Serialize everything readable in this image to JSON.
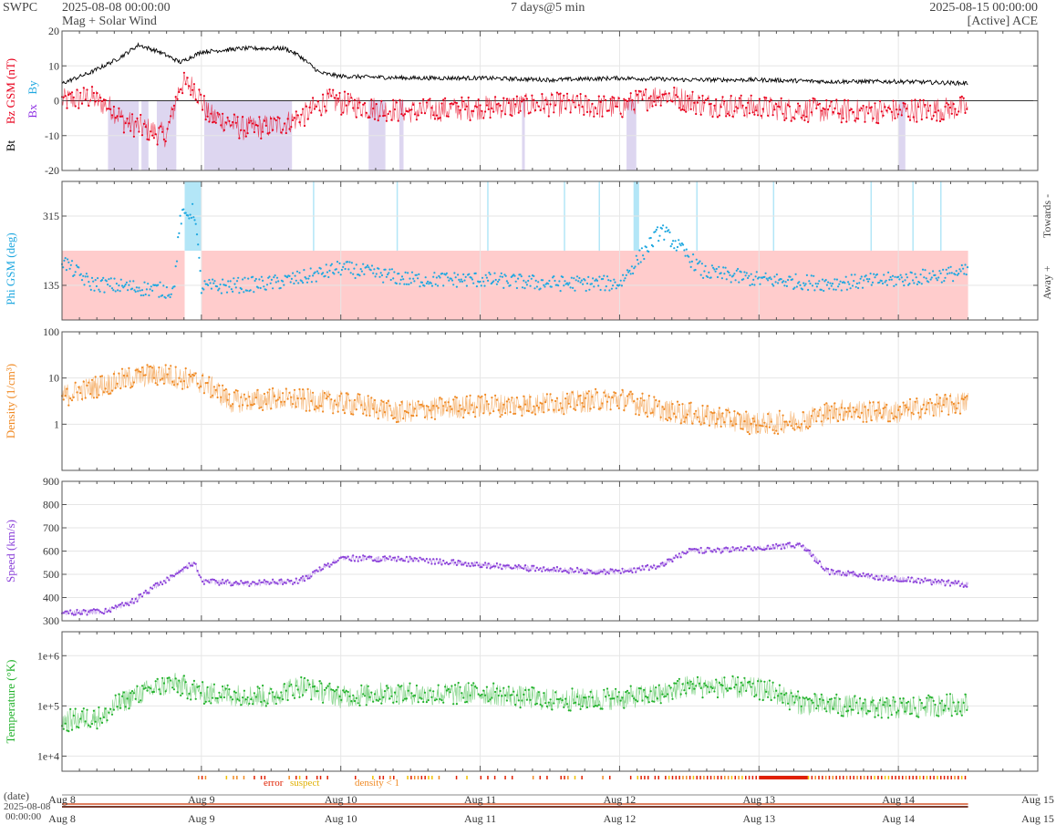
{
  "header": {
    "agency": "SWPC",
    "start": "2025-08-08 00:00:00",
    "subtitle": "Mag + Solar Wind",
    "resolution": "7 days@5 min",
    "end": "2025-08-15 00:00:00",
    "source": "[Active] ACE"
  },
  "colors": {
    "bt": "#000000",
    "bz": "#e8001c",
    "bx": "#8b2be2",
    "by": "#1fa8e0",
    "phi": "#1fa8e0",
    "density": "#f08a24",
    "speed": "#8a3fd9",
    "temperature": "#22b22b",
    "phi_away_band": "#ffcccc",
    "phi_toward_band": "#b3e6f7",
    "bz_south_shade": "#ddd6f0",
    "error": "#e02000",
    "suspect": "#f0c000",
    "density_flag": "#f08a24"
  },
  "legend_flags": {
    "error": "error",
    "suspect": "suspect",
    "density": "density < 1"
  },
  "date_axis": {
    "label": "(date)",
    "start_date": "2025-08-08",
    "start_time": "00:00:00"
  },
  "chart_data": [
    {
      "type": "line",
      "panel": "mag",
      "ylabel_parts": [
        "Bt",
        "Bz GSM (nT)",
        "Bx",
        "By"
      ],
      "ylim": [
        -20,
        20
      ],
      "yticks": [
        "20",
        "10",
        "0",
        "-10",
        "-20"
      ],
      "x_ticks": [
        "Aug 8",
        "Aug 9",
        "Aug 10",
        "Aug 11",
        "Aug 12",
        "Aug 13",
        "Aug 14",
        "Aug 15"
      ],
      "x_unit": "days since 2025-08-08 00:00",
      "series": [
        {
          "name": "Bt",
          "x": [
            0,
            0.2,
            0.4,
            0.55,
            0.7,
            0.85,
            1.0,
            1.3,
            1.6,
            1.7,
            1.85,
            2.0,
            2.5,
            3.0,
            3.5,
            4.0,
            4.5,
            5.0,
            5.5,
            6.0,
            6.5
          ],
          "y": [
            5,
            8,
            12,
            16,
            14,
            11,
            14,
            15,
            15,
            13,
            8,
            7,
            6.5,
            6.5,
            6,
            6.5,
            6,
            6,
            5.5,
            5.5,
            5
          ]
        },
        {
          "name": "Bz",
          "x": [
            0,
            0.2,
            0.35,
            0.45,
            0.6,
            0.75,
            0.85,
            0.95,
            1.05,
            1.3,
            1.55,
            1.7,
            1.9,
            2.2,
            2.5,
            3.0,
            3.5,
            4.0,
            4.3,
            4.6,
            5.0,
            5.5,
            6.0,
            6.5
          ],
          "y": [
            0,
            1,
            -2,
            -6,
            -8,
            -10,
            5,
            4,
            -4,
            -8,
            -7,
            -5,
            0,
            -2,
            -3,
            -2,
            -1,
            -2,
            2,
            -1,
            -2,
            -3,
            -3,
            -2
          ]
        }
      ]
    },
    {
      "type": "scatter",
      "panel": "phi",
      "ylabel": "Phi GSM (deg)",
      "ylim": [
        45,
        405
      ],
      "yticks": [
        "315",
        "135"
      ],
      "right_labels": [
        "Towards -",
        "Away +"
      ],
      "series": [
        {
          "name": "Phi",
          "x": [
            0,
            0.2,
            0.5,
            0.8,
            0.85,
            0.95,
            1.0,
            1.5,
            1.8,
            2.0,
            2.5,
            3.0,
            3.5,
            4.0,
            4.3,
            4.6,
            5.0,
            5.5,
            6.0,
            6.5
          ],
          "y": [
            200,
            140,
            130,
            120,
            310,
            330,
            130,
            140,
            160,
            180,
            150,
            150,
            140,
            140,
            280,
            170,
            150,
            140,
            150,
            170
          ]
        }
      ]
    },
    {
      "type": "line",
      "panel": "density",
      "ylabel": "Density (1/cm³)",
      "yscale": "log",
      "ylim": [
        0.1,
        100
      ],
      "yticks": [
        "100",
        "10",
        "1"
      ],
      "series": [
        {
          "name": "Density",
          "x": [
            0,
            0.3,
            0.5,
            0.7,
            1.0,
            1.2,
            1.5,
            1.8,
            2.0,
            2.4,
            2.7,
            3.0,
            3.5,
            4.0,
            4.3,
            4.6,
            5.0,
            5.3,
            5.6,
            6.0,
            6.5
          ],
          "y": [
            4,
            7,
            10,
            12,
            8,
            3,
            3.5,
            3.2,
            3,
            1.8,
            2.2,
            2.5,
            2.8,
            3.5,
            2,
            1.5,
            1,
            1.2,
            2,
            1.8,
            3
          ]
        }
      ]
    },
    {
      "type": "line",
      "panel": "speed",
      "ylabel": "Speed (km/s)",
      "ylim": [
        300,
        900
      ],
      "yticks": [
        "900",
        "800",
        "700",
        "600",
        "500",
        "400",
        "300"
      ],
      "series": [
        {
          "name": "Speed",
          "x": [
            0,
            0.3,
            0.5,
            0.7,
            0.95,
            1.0,
            1.3,
            1.7,
            2.0,
            2.5,
            3.0,
            3.5,
            4.0,
            4.3,
            4.5,
            5.0,
            5.3,
            5.5,
            6.0,
            6.5
          ],
          "y": [
            335,
            340,
            380,
            460,
            550,
            470,
            460,
            470,
            570,
            565,
            540,
            520,
            510,
            540,
            600,
            610,
            630,
            510,
            480,
            455
          ]
        }
      ]
    },
    {
      "type": "line",
      "panel": "temperature",
      "ylabel": "Temperature (°K)",
      "yscale": "log",
      "ylim": [
        5000,
        3000000
      ],
      "yticks": [
        "1e+6",
        "1e+5",
        "1e+4"
      ],
      "series": [
        {
          "name": "Temperature",
          "x": [
            0,
            0.3,
            0.5,
            0.8,
            1.0,
            1.5,
            1.7,
            2.0,
            2.3,
            2.7,
            3.0,
            3.5,
            4.0,
            4.3,
            4.5,
            5.0,
            5.3,
            5.6,
            6.0,
            6.5
          ],
          "y": [
            50000,
            60000,
            150000,
            280000,
            180000,
            150000,
            250000,
            150000,
            180000,
            170000,
            180000,
            130000,
            140000,
            170000,
            250000,
            220000,
            110000,
            100000,
            90000,
            110000
          ]
        }
      ]
    }
  ]
}
